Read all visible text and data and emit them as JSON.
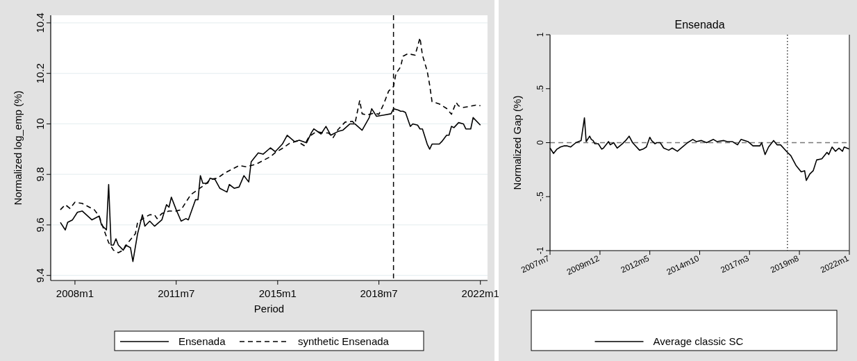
{
  "chart_data": [
    {
      "type": "line",
      "xlabel": "Period",
      "ylabel": "Normalized log_emp (%)",
      "xlim": [
        "2007-03",
        "2022-04"
      ],
      "ylim": [
        9.38,
        10.43
      ],
      "xticks": [
        {
          "value": "2008-01",
          "label": "2008m1"
        },
        {
          "value": "2011-07",
          "label": "2011m7"
        },
        {
          "value": "2015-01",
          "label": "2015m1"
        },
        {
          "value": "2018-07",
          "label": "2018m7"
        },
        {
          "value": "2022-01",
          "label": "2022m1"
        }
      ],
      "yticks": [
        9.4,
        9.6,
        9.8,
        {
          "value": 10,
          "label": "10"
        },
        10.2,
        10.4
      ],
      "grid": "y",
      "legend": "bottom",
      "ref_lines": [
        {
          "axis": "x",
          "value": "2019-01",
          "color": "#000000",
          "line_style": "dashed"
        }
      ],
      "series": [
        {
          "name": "Ensenada",
          "color": "#000000",
          "line_style": "solid",
          "x": [
            "2007-07",
            "2007-09",
            "2007-10",
            "2007-12",
            "2008-02",
            "2008-04",
            "2008-08",
            "2008-11",
            "2008-12",
            "2009-02",
            "2009-03",
            "2009-04",
            "2009-05",
            "2009-06",
            "2009-07",
            "2009-09",
            "2009-10",
            "2009-12",
            "2010-01",
            "2010-03",
            "2010-05",
            "2010-06",
            "2010-08",
            "2010-10",
            "2011-01",
            "2011-03",
            "2011-04",
            "2011-05",
            "2011-07",
            "2011-09",
            "2011-11",
            "2011-12",
            "2012-03",
            "2012-04",
            "2012-05",
            "2012-06",
            "2012-08",
            "2012-09",
            "2012-11",
            "2013-01",
            "2013-04",
            "2013-05",
            "2013-07",
            "2013-09",
            "2013-11",
            "2014-01",
            "2014-02",
            "2014-05",
            "2014-07",
            "2014-10",
            "2014-12",
            "2015-03",
            "2015-05",
            "2015-08",
            "2015-10",
            "2016-01",
            "2016-03",
            "2016-04",
            "2016-07",
            "2016-09",
            "2016-11",
            "2017-02",
            "2017-04",
            "2017-07",
            "2017-09",
            "2017-12",
            "2018-03",
            "2018-04",
            "2018-06",
            "2018-09",
            "2018-12",
            "2019-01",
            "2019-03",
            "2019-04",
            "2019-05",
            "2019-06",
            "2019-08",
            "2019-09",
            "2019-11",
            "2019-12",
            "2020-01",
            "2020-03",
            "2020-04",
            "2020-05",
            "2020-08",
            "2020-09",
            "2020-11",
            "2020-12",
            "2021-01",
            "2021-02",
            "2021-04",
            "2021-06",
            "2021-07",
            "2021-09",
            "2021-10",
            "2022-01"
          ],
          "values": [
            9.61,
            9.58,
            9.61,
            9.62,
            9.65,
            9.655,
            9.62,
            9.635,
            9.6,
            9.58,
            9.76,
            9.52,
            9.52,
            9.545,
            9.52,
            9.5,
            9.52,
            9.51,
            9.455,
            9.565,
            9.64,
            9.595,
            9.615,
            9.595,
            9.62,
            9.68,
            9.67,
            9.71,
            9.66,
            9.615,
            9.625,
            9.62,
            9.7,
            9.7,
            9.795,
            9.765,
            9.765,
            9.785,
            9.78,
            9.745,
            9.73,
            9.76,
            9.745,
            9.75,
            9.795,
            9.77,
            9.85,
            9.885,
            9.88,
            9.905,
            9.89,
            9.92,
            9.955,
            9.93,
            9.935,
            9.925,
            9.965,
            9.98,
            9.96,
            9.99,
            9.955,
            9.97,
            9.975,
            10.0,
            10.0,
            9.975,
            10.025,
            10.06,
            10.03,
            10.035,
            10.04,
            10.06,
            10.055,
            10.05,
            10.05,
            10.045,
            9.99,
            10.0,
            9.995,
            9.98,
            9.98,
            9.92,
            9.9,
            9.92,
            9.92,
            9.93,
            9.955,
            9.955,
            9.99,
            9.985,
            10.005,
            10.0,
            9.98,
            9.98,
            10.025,
            9.995
          ]
        },
        {
          "name": "synthetic Ensenada",
          "color": "#000000",
          "line_style": "dashed",
          "x": [
            "2007-07",
            "2007-09",
            "2007-11",
            "2008-01",
            "2008-04",
            "2008-07",
            "2008-09",
            "2008-11",
            "2009-01",
            "2009-03",
            "2009-05",
            "2009-07",
            "2009-09",
            "2009-11",
            "2010-02",
            "2010-03",
            "2010-06",
            "2010-08",
            "2010-10",
            "2010-11",
            "2011-01",
            "2011-04",
            "2011-07",
            "2011-09",
            "2011-11",
            "2012-01",
            "2012-04",
            "2012-07",
            "2012-09",
            "2012-12",
            "2013-03",
            "2013-06",
            "2013-09",
            "2013-12",
            "2014-04",
            "2014-07",
            "2014-10",
            "2014-12",
            "2015-03",
            "2015-06",
            "2015-09",
            "2015-12",
            "2016-02",
            "2016-05",
            "2016-08",
            "2016-10",
            "2016-12",
            "2017-02",
            "2017-05",
            "2017-08",
            "2017-09",
            "2017-11",
            "2017-12",
            "2018-02",
            "2018-05",
            "2018-07",
            "2018-09",
            "2018-11",
            "2019-01",
            "2019-02",
            "2019-04",
            "2019-05",
            "2019-07",
            "2019-10",
            "2019-12",
            "2020-01",
            "2020-03",
            "2020-04",
            "2020-05",
            "2020-08",
            "2020-11",
            "2021-01",
            "2021-03",
            "2021-04",
            "2021-06",
            "2021-09",
            "2021-11",
            "2022-01"
          ],
          "values": [
            9.66,
            9.68,
            9.665,
            9.69,
            9.685,
            9.67,
            9.66,
            9.635,
            9.58,
            9.53,
            9.5,
            9.49,
            9.5,
            9.53,
            9.565,
            9.61,
            9.63,
            9.64,
            9.64,
            9.625,
            9.645,
            9.655,
            9.655,
            9.66,
            9.69,
            9.72,
            9.74,
            9.76,
            9.78,
            9.785,
            9.805,
            9.82,
            9.835,
            9.83,
            9.84,
            9.855,
            9.87,
            9.886,
            9.903,
            9.923,
            9.932,
            9.914,
            9.95,
            9.969,
            9.964,
            9.964,
            9.946,
            9.978,
            10.007,
            10.01,
            10.0,
            10.093,
            10.04,
            10.035,
            10.043,
            10.038,
            10.08,
            10.13,
            10.148,
            10.199,
            10.226,
            10.268,
            10.278,
            10.272,
            10.341,
            10.272,
            10.209,
            10.154,
            10.088,
            10.079,
            10.061,
            10.038,
            10.085,
            10.071,
            10.065,
            10.07,
            10.074,
            10.072
          ]
        }
      ]
    },
    {
      "type": "line",
      "title": "Ensenada",
      "ylabel": "Normalized Gap (%)",
      "xlim": [
        "2007-07",
        "2022-01"
      ],
      "ylim": [
        -1,
        1
      ],
      "xticks": [
        {
          "value": "2007-07",
          "label": "2007m7"
        },
        {
          "value": "2009-12",
          "label": "2009m12"
        },
        {
          "value": "2012-05",
          "label": "2012m5"
        },
        {
          "value": "2014-10",
          "label": "2014m10"
        },
        {
          "value": "2017-03",
          "label": "2017m3"
        },
        {
          "value": "2019-08",
          "label": "2019m8"
        },
        {
          "value": "2022-01",
          "label": "2022m1"
        }
      ],
      "yticks": [
        -1,
        {
          "value": -0.5,
          "label": "-.5"
        },
        0,
        {
          "value": 0.5,
          "label": ".5"
        },
        1
      ],
      "legend": "bottom",
      "ref_lines": [
        {
          "axis": "x",
          "value": "2019-01",
          "color": "#000000",
          "line_style": "dotted"
        },
        {
          "axis": "y",
          "value": 0,
          "color": "#777777",
          "line_style": "dashed"
        }
      ],
      "series": [
        {
          "name": "Average classic SC",
          "color": "#000000",
          "line_style": "solid",
          "x": [
            "2007-07",
            "2007-09",
            "2007-11",
            "2008-01",
            "2008-03",
            "2008-05",
            "2008-07",
            "2008-10",
            "2009-01",
            "2009-03",
            "2009-04",
            "2009-06",
            "2009-07",
            "2009-08",
            "2009-09",
            "2009-11",
            "2010-01",
            "2010-02",
            "2010-05",
            "2010-06",
            "2010-08",
            "2010-10",
            "2011-01",
            "2011-03",
            "2011-05",
            "2011-07",
            "2011-11",
            "2012-01",
            "2012-03",
            "2012-05",
            "2012-06",
            "2012-08",
            "2012-09",
            "2012-11",
            "2013-01",
            "2013-04",
            "2013-06",
            "2013-09",
            "2013-12",
            "2014-03",
            "2014-06",
            "2014-08",
            "2014-11",
            "2015-02",
            "2015-06",
            "2015-08",
            "2015-12",
            "2016-02",
            "2016-05",
            "2016-08",
            "2016-10",
            "2017-02",
            "2017-05",
            "2017-09",
            "2017-10",
            "2017-12",
            "2018-02",
            "2018-05",
            "2018-07",
            "2018-09",
            "2019-01",
            "2019-03",
            "2019-06",
            "2019-09",
            "2019-11",
            "2019-12",
            "2020-02",
            "2020-04",
            "2020-06",
            "2020-09",
            "2020-12",
            "2021-01",
            "2021-03",
            "2021-05",
            "2021-07",
            "2021-09",
            "2021-10",
            "2022-01"
          ],
          "values": [
            -0.05,
            -0.1,
            -0.06,
            -0.04,
            -0.03,
            -0.03,
            -0.04,
            0.0,
            0.02,
            0.23,
            0.01,
            0.06,
            0.03,
            0.02,
            -0.01,
            -0.01,
            -0.06,
            -0.05,
            0.01,
            -0.02,
            0.0,
            -0.05,
            -0.01,
            0.02,
            0.06,
            0.0,
            -0.07,
            -0.06,
            -0.04,
            0.05,
            0.02,
            -0.01,
            0.0,
            0.0,
            -0.05,
            -0.07,
            -0.05,
            -0.08,
            -0.04,
            0.0,
            0.03,
            0.01,
            0.02,
            0.0,
            0.03,
            0.01,
            0.02,
            0.01,
            0.01,
            -0.02,
            0.03,
            0.01,
            -0.03,
            -0.03,
            0.0,
            -0.11,
            -0.04,
            0.02,
            -0.02,
            -0.02,
            -0.09,
            -0.12,
            -0.21,
            -0.27,
            -0.26,
            -0.35,
            -0.29,
            -0.26,
            -0.16,
            -0.15,
            -0.09,
            -0.11,
            -0.04,
            -0.08,
            -0.05,
            -0.08,
            -0.04,
            -0.06
          ]
        }
      ]
    }
  ]
}
